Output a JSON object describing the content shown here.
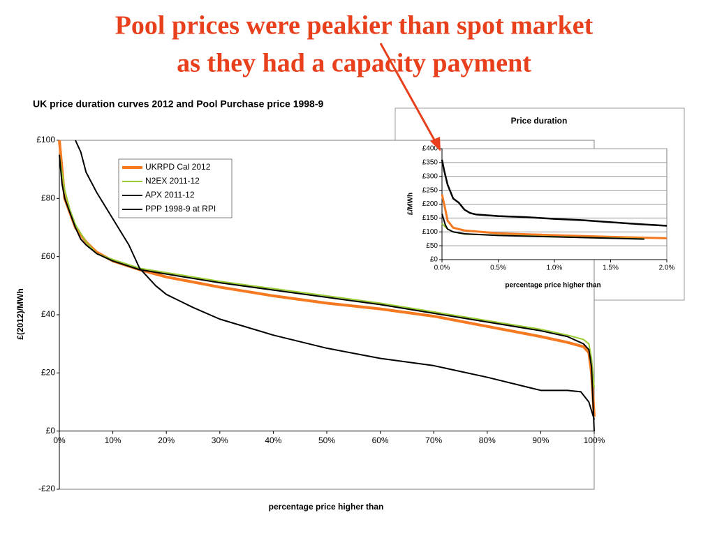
{
  "heading": [
    "Pool prices were peakier than spot market",
    "as they had a capacity payment"
  ],
  "chart_data": [
    {
      "type": "line",
      "title": "UK price duration curves 2012 and Pool Purchase price 1998-9",
      "xlabel": "percentage price higher than",
      "ylabel": "£(2012)/MWh",
      "xlim": [
        0,
        100
      ],
      "ylim": [
        -20,
        100
      ],
      "xticks": [
        {
          "value": 0,
          "label": "0%"
        },
        {
          "value": 10,
          "label": "10%"
        },
        {
          "value": 20,
          "label": "20%"
        },
        {
          "value": 30,
          "label": "30%"
        },
        {
          "value": 40,
          "label": "40%"
        },
        {
          "value": 50,
          "label": "50%"
        },
        {
          "value": 60,
          "label": "60%"
        },
        {
          "value": 70,
          "label": "70%"
        },
        {
          "value": 80,
          "label": "80%"
        },
        {
          "value": 90,
          "label": "90%"
        },
        {
          "value": 100,
          "label": "100%"
        }
      ],
      "yticks": [
        {
          "value": -20,
          "label": "-£20"
        },
        {
          "value": 0,
          "label": "£0"
        },
        {
          "value": 20,
          "label": "£20"
        },
        {
          "value": 40,
          "label": "£40"
        },
        {
          "value": 60,
          "label": "£60"
        },
        {
          "value": 80,
          "label": "£80"
        },
        {
          "value": 100,
          "label": "£100"
        }
      ],
      "grid": false,
      "legend": "top-left",
      "series": [
        {
          "name": "UKRPD Cal 2012",
          "color": "#f47920",
          "x": [
            0,
            1,
            2,
            3,
            5,
            7,
            10,
            15,
            20,
            30,
            40,
            50,
            60,
            70,
            80,
            90,
            95,
            98,
            99,
            99.5,
            100
          ],
          "values": [
            100,
            80,
            75,
            70,
            65,
            61.5,
            58.5,
            55.5,
            53,
            49.5,
            46.5,
            44,
            42,
            39.5,
            36,
            32.5,
            30.5,
            29,
            27,
            20,
            5
          ]
        },
        {
          "name": "N2EX 2011-12",
          "color": "#99cc33",
          "x": [
            0,
            1,
            2,
            3,
            5,
            7,
            10,
            15,
            20,
            30,
            40,
            50,
            60,
            70,
            80,
            90,
            95,
            98,
            99,
            99.5,
            100
          ],
          "values": [
            95,
            83,
            76,
            71,
            65,
            61,
            59,
            56,
            54.5,
            51.5,
            49,
            46.5,
            44,
            41,
            38,
            35,
            33,
            31.5,
            30,
            25,
            15
          ]
        },
        {
          "name": "APX 2011-12",
          "color": "#000000",
          "x": [
            0,
            0.5,
            1,
            2,
            3,
            4,
            5,
            7,
            10,
            15,
            20,
            30,
            40,
            50,
            60,
            70,
            80,
            90,
            95,
            98,
            99,
            99.5,
            100
          ],
          "values": [
            95,
            85,
            80,
            75,
            70,
            66,
            64,
            61,
            58.5,
            55.5,
            54,
            51,
            48.5,
            46,
            43.5,
            40.5,
            37.5,
            34.5,
            32.5,
            30,
            28,
            22,
            0
          ]
        },
        {
          "name": "PPP 1998-9 at RPI",
          "color": "#000000",
          "x": [
            3,
            4,
            5,
            7,
            10,
            13,
            15,
            18,
            20,
            25,
            30,
            40,
            50,
            60,
            70,
            80,
            90,
            95,
            97.5,
            99,
            100
          ],
          "values": [
            100,
            96,
            89,
            82,
            73,
            64,
            56,
            50,
            47,
            42.5,
            38.5,
            33,
            28.5,
            25,
            22.5,
            18.5,
            14,
            14,
            13.5,
            10,
            4
          ]
        }
      ]
    },
    {
      "type": "line",
      "title": "Price duration",
      "xlabel": "percentage price higher than",
      "ylabel": "£/MWh",
      "xlim": [
        0,
        2
      ],
      "ylim": [
        0,
        400
      ],
      "xticks": [
        {
          "value": 0,
          "label": "0.0%"
        },
        {
          "value": 0.5,
          "label": "0.5%"
        },
        {
          "value": 1,
          "label": "1.0%"
        },
        {
          "value": 1.5,
          "label": "1.5%"
        },
        {
          "value": 2,
          "label": "2.0%"
        }
      ],
      "yticks": [
        {
          "value": 0,
          "label": "£0"
        },
        {
          "value": 50,
          "label": "£50"
        },
        {
          "value": 100,
          "label": "£100"
        },
        {
          "value": 150,
          "label": "£150"
        },
        {
          "value": 200,
          "label": "£200"
        },
        {
          "value": 250,
          "label": "£250"
        },
        {
          "value": 300,
          "label": "£300"
        },
        {
          "value": 350,
          "label": "£350"
        },
        {
          "value": 400,
          "label": "£400"
        }
      ],
      "grid": true,
      "series": [
        {
          "color": "#000000",
          "x": [
            0,
            0.02,
            0.05,
            0.1,
            0.15,
            0.2,
            0.25,
            0.3,
            0.5,
            0.75,
            1,
            1.25,
            1.5,
            1.75,
            2
          ],
          "values": [
            360,
            320,
            270,
            220,
            205,
            180,
            168,
            163,
            157,
            153,
            147,
            142,
            135,
            128,
            122
          ]
        },
        {
          "color": "#f47920",
          "x": [
            0,
            0.03,
            0.05,
            0.1,
            0.2,
            0.5,
            1,
            1.5,
            2
          ],
          "values": [
            235,
            180,
            140,
            115,
            105,
            95,
            88,
            82,
            77
          ]
        },
        {
          "color": "#99cc33",
          "x": [
            0,
            0.05,
            0.1,
            0.2,
            0.5,
            1,
            1.5,
            1.8
          ],
          "values": [
            130,
            110,
            100,
            92,
            88,
            83,
            78,
            75
          ]
        },
        {
          "color": "#000000",
          "x": [
            0,
            0.03,
            0.05,
            0.1,
            0.2,
            0.5,
            1,
            1.5,
            1.8
          ],
          "values": [
            165,
            125,
            110,
            100,
            93,
            87,
            82,
            77,
            74
          ]
        }
      ]
    }
  ]
}
